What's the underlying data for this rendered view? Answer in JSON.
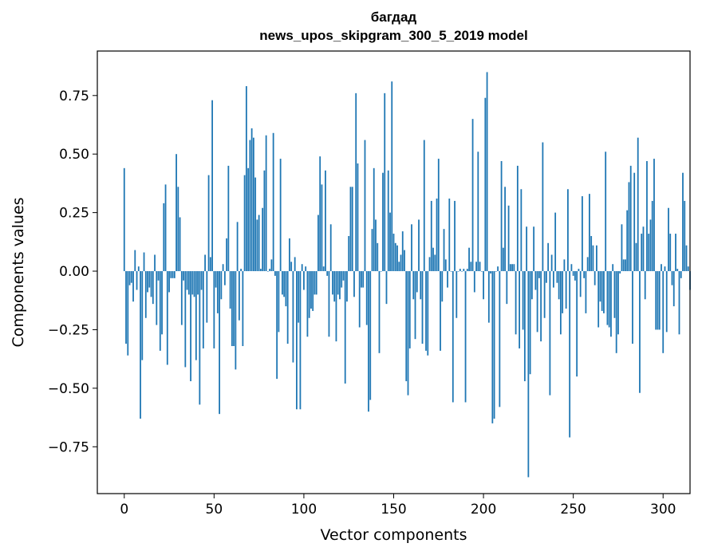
{
  "chart_data": {
    "type": "bar",
    "title": "багдад",
    "subtitle": "news_upos_skipgram_300_5_2019 model",
    "xlabel": "Vector components",
    "ylabel": "Components values",
    "xlim": [
      -15,
      315
    ],
    "ylim": [
      -0.95,
      0.94
    ],
    "xticks": [
      0,
      50,
      100,
      150,
      200,
      250,
      300
    ],
    "xtick_labels": [
      "0",
      "50",
      "100",
      "150",
      "200",
      "250",
      "300"
    ],
    "yticks": [
      -0.75,
      -0.5,
      -0.25,
      0.0,
      0.25,
      0.5,
      0.75
    ],
    "ytick_labels": [
      "−0.75",
      "−0.50",
      "−0.25",
      "0.00",
      "0.25",
      "0.50",
      "0.75"
    ],
    "color": "#1f77b4",
    "values": [
      0.44,
      -0.31,
      -0.36,
      -0.06,
      -0.05,
      -0.13,
      0.09,
      -0.08,
      0.02,
      -0.63,
      -0.38,
      0.08,
      -0.2,
      -0.09,
      -0.07,
      -0.11,
      -0.14,
      0.07,
      -0.23,
      -0.04,
      -0.34,
      -0.27,
      0.29,
      0.37,
      -0.4,
      -0.09,
      -0.03,
      -0.03,
      -0.03,
      0.5,
      0.36,
      0.23,
      -0.23,
      -0.04,
      -0.41,
      -0.08,
      -0.1,
      -0.47,
      -0.1,
      -0.11,
      -0.38,
      -0.1,
      -0.57,
      -0.08,
      -0.33,
      0.07,
      -0.22,
      0.41,
      0.06,
      0.73,
      -0.33,
      -0.07,
      -0.18,
      -0.61,
      -0.12,
      0.03,
      -0.06,
      0.14,
      0.45,
      -0.16,
      -0.32,
      -0.32,
      -0.42,
      0.21,
      -0.21,
      0.01,
      -0.32,
      0.41,
      0.79,
      0.44,
      0.56,
      0.61,
      0.57,
      0.4,
      0.22,
      0.24,
      0.01,
      0.27,
      0.43,
      0.58,
      0.0,
      0.01,
      0.05,
      0.59,
      -0.02,
      -0.46,
      -0.26,
      0.48,
      -0.1,
      -0.11,
      -0.15,
      -0.31,
      0.14,
      0.04,
      -0.39,
      0.06,
      -0.59,
      -0.22,
      -0.59,
      0.03,
      -0.08,
      0.02,
      -0.28,
      -0.2,
      -0.16,
      -0.17,
      -0.1,
      -0.1,
      0.24,
      0.49,
      0.37,
      0.02,
      0.43,
      -0.02,
      -0.28,
      0.2,
      -0.1,
      -0.13,
      -0.3,
      -0.1,
      -0.12,
      -0.07,
      -0.04,
      -0.48,
      -0.13,
      0.15,
      0.36,
      0.36,
      -0.11,
      0.76,
      0.46,
      -0.24,
      -0.07,
      -0.07,
      0.56,
      -0.23,
      -0.6,
      -0.55,
      0.18,
      0.44,
      0.22,
      0.12,
      -0.35,
      0.0,
      0.42,
      0.76,
      -0.14,
      0.43,
      0.25,
      0.81,
      0.16,
      0.12,
      0.11,
      0.04,
      0.07,
      0.17,
      0.09,
      -0.47,
      -0.53,
      -0.33,
      0.2,
      -0.12,
      -0.29,
      -0.09,
      0.22,
      -0.12,
      -0.31,
      0.56,
      -0.34,
      -0.36,
      0.06,
      0.3,
      0.1,
      0.07,
      0.31,
      0.48,
      -0.34,
      -0.13,
      0.18,
      0.05,
      -0.07,
      0.31,
      0.0,
      -0.56,
      0.3,
      -0.2,
      0.0,
      0.01,
      0.0,
      0.01,
      -0.56,
      0.01,
      0.1,
      0.04,
      0.65,
      -0.09,
      0.04,
      0.51,
      0.04,
      0.0,
      -0.12,
      0.74,
      0.85,
      -0.22,
      -0.01,
      -0.65,
      -0.63,
      0.0,
      0.02,
      -0.58,
      0.47,
      0.1,
      0.36,
      -0.14,
      0.28,
      0.03,
      0.03,
      0.03,
      -0.27,
      0.45,
      -0.33,
      0.35,
      -0.25,
      -0.47,
      0.19,
      -0.88,
      -0.44,
      -0.12,
      0.19,
      -0.08,
      -0.26,
      -0.03,
      -0.3,
      0.55,
      -0.2,
      -0.05,
      0.12,
      -0.53,
      0.07,
      -0.07,
      0.25,
      -0.05,
      -0.12,
      -0.27,
      -0.18,
      0.05,
      -0.16,
      0.35,
      -0.71,
      0.03,
      -0.02,
      -0.04,
      -0.45,
      0.01,
      -0.11,
      0.32,
      -0.03,
      -0.18,
      0.06,
      0.33,
      0.15,
      0.11,
      -0.06,
      0.11,
      -0.24,
      -0.13,
      -0.17,
      -0.18,
      0.51,
      -0.23,
      -0.24,
      -0.28,
      0.03,
      -0.2,
      -0.35,
      -0.27,
      -0.01,
      0.2,
      0.05,
      0.05,
      0.26,
      0.38,
      0.45,
      -0.31,
      0.42,
      0.12,
      0.57,
      -0.52,
      0.16,
      0.19,
      -0.12,
      0.47,
      0.16,
      0.22,
      0.3,
      0.48,
      -0.25,
      -0.25,
      -0.25,
      0.03,
      -0.35,
      0.02,
      -0.26,
      0.27,
      0.16,
      -0.06,
      -0.15,
      0.16,
      0.01,
      -0.27,
      -0.03,
      0.42,
      0.3,
      0.11,
      0.02,
      -0.08
    ]
  }
}
